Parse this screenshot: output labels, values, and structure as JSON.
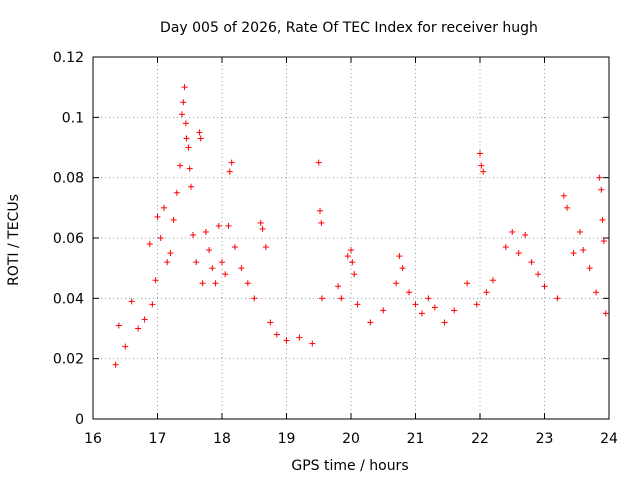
{
  "chart_data": {
    "type": "scatter",
    "title": "Day 005 of 2026, Rate Of TEC Index for receiver hugh",
    "xlabel": "GPS time / hours",
    "ylabel": "ROTI / TECUs",
    "xlim": [
      16,
      24
    ],
    "ylim": [
      0,
      0.12
    ],
    "xticks": [
      "16",
      "17",
      "18",
      "19",
      "20",
      "21",
      "22",
      "23",
      "24"
    ],
    "yticks": [
      "0",
      "0.02",
      "0.04",
      "0.06",
      "0.08",
      "0.1",
      "0.12"
    ],
    "xtick_values": [
      16,
      17,
      18,
      19,
      20,
      21,
      22,
      23,
      24
    ],
    "ytick_values": [
      0,
      0.02,
      0.04,
      0.06,
      0.08,
      0.1,
      0.12
    ],
    "grid": true,
    "marker": "+",
    "color": "#ff0000",
    "series": [
      {
        "name": "ROTI",
        "points": [
          [
            16.35,
            0.018
          ],
          [
            16.4,
            0.031
          ],
          [
            16.5,
            0.024
          ],
          [
            16.6,
            0.039
          ],
          [
            16.7,
            0.03
          ],
          [
            16.8,
            0.033
          ],
          [
            16.88,
            0.058
          ],
          [
            16.92,
            0.038
          ],
          [
            16.97,
            0.046
          ],
          [
            17.0,
            0.067
          ],
          [
            17.05,
            0.06
          ],
          [
            17.1,
            0.07
          ],
          [
            17.15,
            0.052
          ],
          [
            17.2,
            0.055
          ],
          [
            17.25,
            0.066
          ],
          [
            17.3,
            0.075
          ],
          [
            17.35,
            0.084
          ],
          [
            17.38,
            0.101
          ],
          [
            17.4,
            0.105
          ],
          [
            17.42,
            0.11
          ],
          [
            17.44,
            0.098
          ],
          [
            17.45,
            0.093
          ],
          [
            17.48,
            0.09
          ],
          [
            17.5,
            0.083
          ],
          [
            17.52,
            0.077
          ],
          [
            17.55,
            0.061
          ],
          [
            17.6,
            0.052
          ],
          [
            17.65,
            0.095
          ],
          [
            17.67,
            0.093
          ],
          [
            17.7,
            0.045
          ],
          [
            17.75,
            0.062
          ],
          [
            17.8,
            0.056
          ],
          [
            17.85,
            0.05
          ],
          [
            17.9,
            0.045
          ],
          [
            17.95,
            0.064
          ],
          [
            18.0,
            0.052
          ],
          [
            18.05,
            0.048
          ],
          [
            18.1,
            0.064
          ],
          [
            18.12,
            0.082
          ],
          [
            18.15,
            0.085
          ],
          [
            18.2,
            0.057
          ],
          [
            18.3,
            0.05
          ],
          [
            18.4,
            0.045
          ],
          [
            18.5,
            0.04
          ],
          [
            18.6,
            0.065
          ],
          [
            18.63,
            0.063
          ],
          [
            18.68,
            0.057
          ],
          [
            18.75,
            0.032
          ],
          [
            18.85,
            0.028
          ],
          [
            19.0,
            0.026
          ],
          [
            19.2,
            0.027
          ],
          [
            19.4,
            0.025
          ],
          [
            19.5,
            0.085
          ],
          [
            19.52,
            0.069
          ],
          [
            19.54,
            0.065
          ],
          [
            19.55,
            0.04
          ],
          [
            19.8,
            0.044
          ],
          [
            19.85,
            0.04
          ],
          [
            19.95,
            0.054
          ],
          [
            20.0,
            0.056
          ],
          [
            20.02,
            0.052
          ],
          [
            20.05,
            0.048
          ],
          [
            20.1,
            0.038
          ],
          [
            20.3,
            0.032
          ],
          [
            20.5,
            0.036
          ],
          [
            20.7,
            0.045
          ],
          [
            20.75,
            0.054
          ],
          [
            20.8,
            0.05
          ],
          [
            20.9,
            0.042
          ],
          [
            21.0,
            0.038
          ],
          [
            21.1,
            0.035
          ],
          [
            21.2,
            0.04
          ],
          [
            21.3,
            0.037
          ],
          [
            21.45,
            0.032
          ],
          [
            21.6,
            0.036
          ],
          [
            21.8,
            0.045
          ],
          [
            21.95,
            0.038
          ],
          [
            22.0,
            0.088
          ],
          [
            22.02,
            0.084
          ],
          [
            22.05,
            0.082
          ],
          [
            22.1,
            0.042
          ],
          [
            22.2,
            0.046
          ],
          [
            22.4,
            0.057
          ],
          [
            22.5,
            0.062
          ],
          [
            22.6,
            0.055
          ],
          [
            22.7,
            0.061
          ],
          [
            22.8,
            0.052
          ],
          [
            22.9,
            0.048
          ],
          [
            23.0,
            0.044
          ],
          [
            23.2,
            0.04
          ],
          [
            23.3,
            0.074
          ],
          [
            23.35,
            0.07
          ],
          [
            23.45,
            0.055
          ],
          [
            23.55,
            0.062
          ],
          [
            23.6,
            0.056
          ],
          [
            23.7,
            0.05
          ],
          [
            23.8,
            0.042
          ],
          [
            23.85,
            0.08
          ],
          [
            23.88,
            0.076
          ],
          [
            23.9,
            0.066
          ],
          [
            23.92,
            0.059
          ],
          [
            23.95,
            0.035
          ]
        ]
      }
    ]
  }
}
